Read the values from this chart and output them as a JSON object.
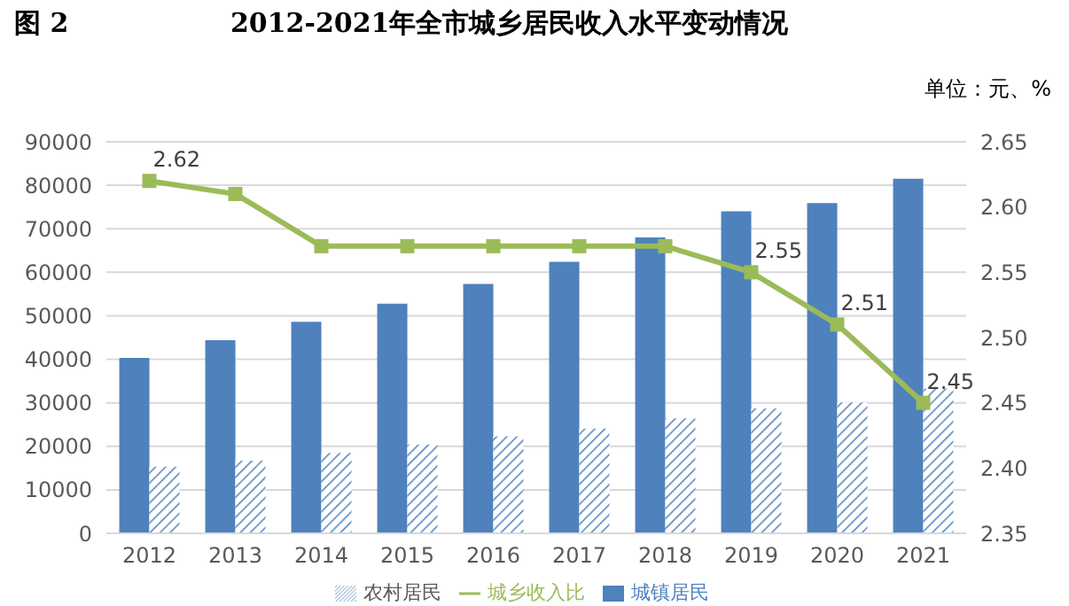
{
  "chart_data": {
    "type": "bar",
    "title": "2012-2021年全市城乡居民收入水平变动情况",
    "annotations": [
      "图 2",
      "单位：元、%"
    ],
    "categories": [
      "2012",
      "2013",
      "2014",
      "2015",
      "2016",
      "2017",
      "2018",
      "2019",
      "2020",
      "2021"
    ],
    "series": [
      {
        "name": "城镇居民",
        "color": "#4f81bd",
        "values": [
          40300,
          44400,
          48600,
          52800,
          57300,
          62400,
          68000,
          74000,
          75900,
          81500
        ]
      },
      {
        "name": "农村居民",
        "color": "#4f81bd",
        "values": [
          15300,
          16700,
          18500,
          20400,
          22300,
          24100,
          26400,
          28700,
          30100,
          33300
        ]
      },
      {
        "name": "城乡收入比",
        "type": "line",
        "axis": "y2",
        "color": "#9bbb59",
        "marker": "square",
        "values": [
          2.62,
          2.61,
          2.57,
          2.57,
          2.57,
          2.57,
          2.57,
          2.55,
          2.51,
          2.45
        ],
        "value_labels": [
          "2.62",
          null,
          null,
          null,
          null,
          null,
          null,
          "2.55",
          "2.51",
          "2.45"
        ]
      }
    ],
    "ylim": [
      0,
      90000
    ],
    "yticks": [
      0,
      10000,
      20000,
      30000,
      40000,
      50000,
      60000,
      70000,
      80000,
      90000
    ],
    "y2lim": [
      2.35,
      2.65
    ],
    "y2ticks": [
      {
        "value": 2.35,
        "label": "2.35"
      },
      {
        "value": 2.4,
        "label": "2.40"
      },
      {
        "value": 2.45,
        "label": "2.45"
      },
      {
        "value": 2.5,
        "label": "2.50"
      },
      {
        "value": 2.55,
        "label": "2.55"
      },
      {
        "value": 2.6,
        "label": "2.60"
      },
      {
        "value": 2.65,
        "label": "2.65"
      }
    ],
    "grid": "y",
    "legend": "bottom"
  }
}
